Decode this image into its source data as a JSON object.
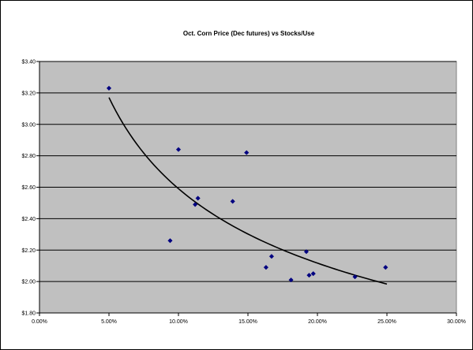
{
  "chart_data": {
    "type": "scatter",
    "title": "Oct. Corn Price (Dec futures) vs Stocks/Use",
    "xlabel": "",
    "ylabel": "",
    "xlim": [
      0.0,
      0.3
    ],
    "ylim": [
      1.8,
      3.4
    ],
    "x_ticks": [
      0.0,
      0.05,
      0.1,
      0.15,
      0.2,
      0.25,
      0.3
    ],
    "x_tick_labels": [
      "0.00%",
      "5.00%",
      "10.00%",
      "15.00%",
      "20.00%",
      "25.00%",
      "30.00%"
    ],
    "y_ticks": [
      1.8,
      2.0,
      2.2,
      2.4,
      2.6,
      2.8,
      3.0,
      3.2,
      3.4
    ],
    "y_tick_labels": [
      "$1.80",
      "$2.00",
      "$2.20",
      "$2.40",
      "$2.60",
      "$2.80",
      "$3.00",
      "$3.20",
      "$3.40"
    ],
    "grid": "horizontal",
    "legend": "none",
    "series": [
      {
        "marker": "diamond",
        "color": "#000080",
        "points": [
          {
            "x": 0.05,
            "y": 3.23
          },
          {
            "x": 0.094,
            "y": 2.26
          },
          {
            "x": 0.1,
            "y": 2.84
          },
          {
            "x": 0.112,
            "y": 2.49
          },
          {
            "x": 0.114,
            "y": 2.53
          },
          {
            "x": 0.139,
            "y": 2.51
          },
          {
            "x": 0.149,
            "y": 2.82
          },
          {
            "x": 0.163,
            "y": 2.09
          },
          {
            "x": 0.167,
            "y": 2.16
          },
          {
            "x": 0.181,
            "y": 2.01
          },
          {
            "x": 0.192,
            "y": 2.19
          },
          {
            "x": 0.194,
            "y": 2.04
          },
          {
            "x": 0.197,
            "y": 2.05
          },
          {
            "x": 0.227,
            "y": 2.03
          },
          {
            "x": 0.249,
            "y": 2.09
          }
        ]
      }
    ],
    "trendline": {
      "type": "power",
      "color": "#000000",
      "x_start": 0.05,
      "x_end": 0.25,
      "a": 1.3245,
      "b": -0.2914
    },
    "colors": {
      "plot_background": "#c0c0c0",
      "gridline": "#000000",
      "marker": "#000080"
    }
  }
}
